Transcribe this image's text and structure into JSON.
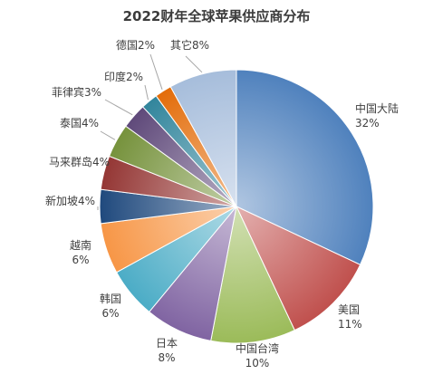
{
  "chart_data": {
    "type": "pie",
    "title": "2022财年全球苹果供应商分布",
    "slices": [
      {
        "label": "中国大陆",
        "value": 32,
        "value_label": "32%",
        "color": "#4f81bd"
      },
      {
        "label": "美国",
        "value": 11,
        "value_label": "11%",
        "color": "#c0504d"
      },
      {
        "label": "中国台湾",
        "value": 10,
        "value_label": "10%",
        "color": "#9bbb59"
      },
      {
        "label": "日本",
        "value": 8,
        "value_label": "8%",
        "color": "#8064a2"
      },
      {
        "label": "韩国",
        "value": 6,
        "value_label": "6%",
        "color": "#4bacc6"
      },
      {
        "label": "越南",
        "value": 6,
        "value_label": "6%",
        "color": "#f79646"
      },
      {
        "label": "新加坡",
        "value": 4,
        "value_label": "4%",
        "color": "#1f497d"
      },
      {
        "label": "马来群岛",
        "value": 4,
        "value_label": "4%",
        "color": "#943634"
      },
      {
        "label": "泰国",
        "value": 4,
        "value_label": "4%",
        "color": "#76923c"
      },
      {
        "label": "菲律宾",
        "value": 3,
        "value_label": "3%",
        "color": "#5f497a"
      },
      {
        "label": "印度",
        "value": 2,
        "value_label": "2%",
        "color": "#31859c"
      },
      {
        "label": "德国",
        "value": 2,
        "value_label": "2%",
        "color": "#e36c09"
      },
      {
        "label": "其它",
        "value": 8,
        "value_label": "8%",
        "color": "#a6bddb"
      }
    ]
  }
}
